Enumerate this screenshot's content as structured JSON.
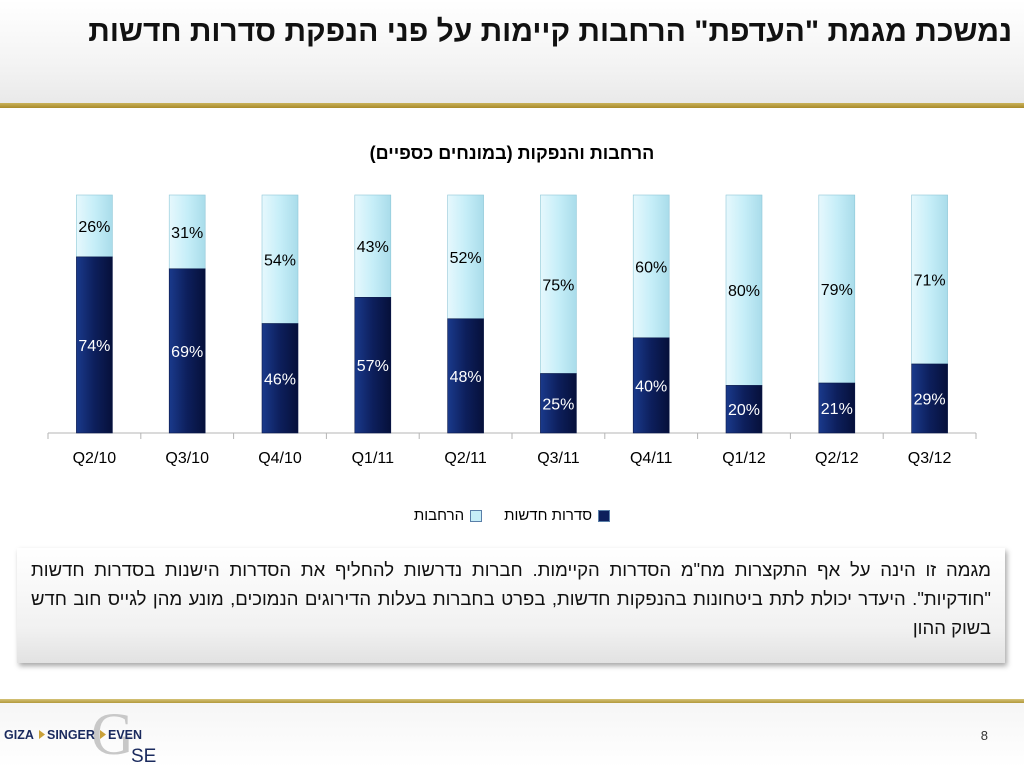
{
  "slide": {
    "title": "נמשכת מגמת \"העדפת\" הרחבות קיימות על פני הנפקת סדרות חדשות",
    "body_text": "מגמה זו הינה על אף התקצרות מח\"מ הסדרות הקיימות. חברות נדרשות להחליף את הסדרות הישנות בסדרות חדשות \"חודקיות\". היעדר יכולת לתת ביטחונות בהנפקות חדשות, בפרט בחברות בעלות הדירוגים הנמוכים, מונע מהן לגייס חוב חדש בשוק ההון",
    "page_number": "8"
  },
  "logo": {
    "word1": "GIZA",
    "word2": "SINGER",
    "word3": "EVEN",
    "big_letter": "G",
    "suffix": "SE"
  },
  "colors": {
    "new_series": "#0d1f5c",
    "expansions": "#c6eef8",
    "gold": "#b39a3c"
  },
  "chart_data": {
    "type": "bar",
    "stacked": true,
    "percent_stacked": true,
    "title": "הרחבות והנפקות (במונחים כספיים)",
    "categories": [
      "Q2/10",
      "Q3/10",
      "Q4/10",
      "Q1/11",
      "Q2/11",
      "Q3/11",
      "Q4/11",
      "Q1/12",
      "Q2/12",
      "Q3/12"
    ],
    "series": [
      {
        "name": "סדרות חדשות",
        "values": [
          74,
          69,
          46,
          57,
          48,
          25,
          40,
          20,
          21,
          29
        ],
        "labels": [
          "74%",
          "69%",
          "46%",
          "57%",
          "48%",
          "25%",
          "40%",
          "20%",
          "21%",
          "29%"
        ]
      },
      {
        "name": "הרחבות",
        "values": [
          26,
          31,
          54,
          43,
          52,
          75,
          60,
          80,
          79,
          71
        ],
        "labels": [
          "26%",
          "31%",
          "54%",
          "43%",
          "52%",
          "75%",
          "60%",
          "80%",
          "79%",
          "71%"
        ]
      }
    ],
    "ylim": [
      0,
      100
    ],
    "legend": "bottom",
    "grid": false
  }
}
